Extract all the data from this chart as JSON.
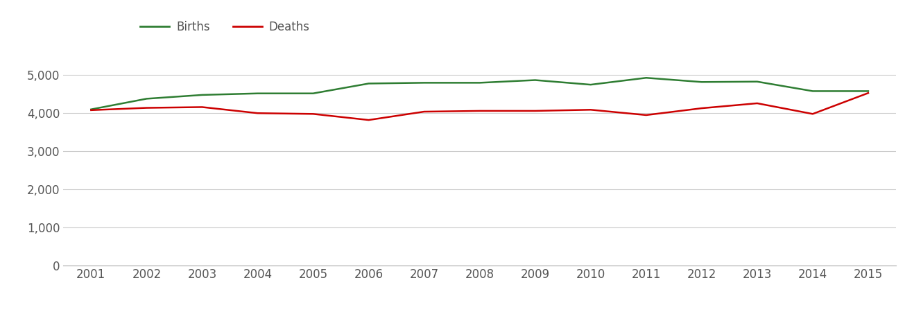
{
  "years": [
    2001,
    2002,
    2003,
    2004,
    2005,
    2006,
    2007,
    2008,
    2009,
    2010,
    2011,
    2012,
    2013,
    2014,
    2015
  ],
  "births": [
    4100,
    4380,
    4480,
    4520,
    4520,
    4780,
    4800,
    4800,
    4870,
    4750,
    4930,
    4820,
    4830,
    4580,
    4580
  ],
  "deaths": [
    4080,
    4140,
    4160,
    4000,
    3980,
    3820,
    4040,
    4060,
    4060,
    4090,
    3950,
    4130,
    4260,
    3980,
    4530
  ],
  "births_color": "#2e7d32",
  "deaths_color": "#cc0000",
  "background_color": "#ffffff",
  "grid_color": "#cccccc",
  "ylim": [
    0,
    5500
  ],
  "yticks": [
    0,
    1000,
    2000,
    3000,
    4000,
    5000
  ],
  "ytick_labels": [
    "0",
    "1,000",
    "2,000",
    "3,000",
    "4,000",
    "5,000"
  ],
  "legend_births": "Births",
  "legend_deaths": "Deaths",
  "line_width": 1.8,
  "tick_fontsize": 12,
  "legend_fontsize": 12
}
